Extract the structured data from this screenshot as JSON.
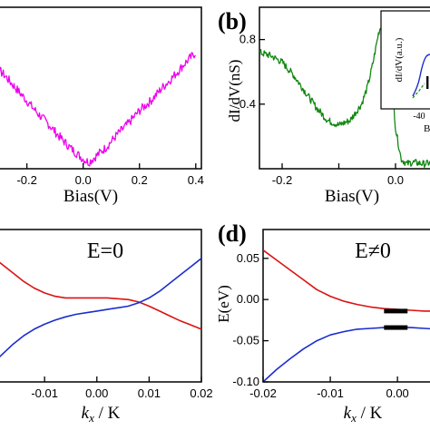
{
  "chart_data": [
    {
      "panel": "",
      "type": "line",
      "xlabel": "Bias(V)",
      "ylabel": "",
      "xlim": [
        -0.36,
        0.42
      ],
      "ylim": [
        0,
        1
      ],
      "x_ticks": [
        -0.2,
        0.0,
        0.2,
        0.4
      ],
      "x_tick_labels": [
        "-0.2",
        "0.0",
        "0.2",
        "0.4"
      ],
      "y_ticks": [],
      "y_tick_labels": [],
      "color": "#ee00ee",
      "noise": 0.028,
      "series": [
        {
          "name": "",
          "x": [
            -0.36,
            -0.32,
            -0.28,
            -0.24,
            -0.2,
            -0.16,
            -0.12,
            -0.08,
            -0.04,
            0.0,
            0.02,
            0.04,
            0.08,
            0.12,
            0.16,
            0.2,
            0.24,
            0.28,
            0.32,
            0.36,
            0.4
          ],
          "y": [
            0.7,
            0.64,
            0.58,
            0.5,
            0.42,
            0.34,
            0.27,
            0.19,
            0.12,
            0.06,
            0.04,
            0.07,
            0.13,
            0.21,
            0.28,
            0.36,
            0.42,
            0.5,
            0.57,
            0.65,
            0.72
          ]
        }
      ]
    },
    {
      "panel": "(b)",
      "type": "line",
      "xlabel": "Bias(V)",
      "ylabel": "dI/dV(nS)",
      "xlim": [
        -0.24,
        0.08
      ],
      "ylim": [
        0,
        1.0
      ],
      "x_ticks": [
        -0.2,
        -0.1,
        0.0
      ],
      "x_tick_labels": [
        "-0.2",
        "",
        "0.0"
      ],
      "y_ticks": [
        0.4,
        0.8
      ],
      "y_tick_labels": [
        "0.4",
        "0.8"
      ],
      "color": "#118811",
      "noise": 0.022,
      "series": [
        {
          "name": "",
          "x": [
            -0.24,
            -0.22,
            -0.2,
            -0.18,
            -0.16,
            -0.14,
            -0.12,
            -0.1,
            -0.08,
            -0.06,
            -0.05,
            -0.04,
            -0.03,
            -0.02,
            -0.015,
            -0.01,
            -0.005,
            0.0,
            0.01,
            0.02,
            0.03,
            0.05,
            0.07
          ],
          "y": [
            0.72,
            0.7,
            0.66,
            0.58,
            0.48,
            0.38,
            0.3,
            0.27,
            0.3,
            0.4,
            0.5,
            0.65,
            0.84,
            0.94,
            0.92,
            0.75,
            0.5,
            0.25,
            0.06,
            0.03,
            0.04,
            0.03,
            0.04
          ]
        }
      ],
      "inset": {
        "ylabel": "dI/dV(a.u.)",
        "x_tick_labels": [
          "-40"
        ],
        "xlabel_partial": "B",
        "curve_color": "#1a2ecc",
        "dash_color": "#118811",
        "marker_color": "#000000"
      }
    },
    {
      "panel": "",
      "type": "line",
      "title": "E=0",
      "xlabel": "k_x / K",
      "ylabel": "",
      "xlim": [
        -0.022,
        0.02
      ],
      "ylim": [
        -0.1,
        0.085
      ],
      "x_ticks": [
        -0.01,
        0.0,
        0.01,
        0.02
      ],
      "x_tick_labels": [
        "-0.01",
        "0.00",
        "0.01",
        "0.02"
      ],
      "y_ticks": [],
      "y_tick_labels": [],
      "series": [
        {
          "name": "",
          "color": "#dd1111",
          "x": [
            -0.022,
            -0.02,
            -0.018,
            -0.016,
            -0.014,
            -0.012,
            -0.01,
            -0.008,
            -0.006,
            -0.004,
            -0.002,
            0.0,
            0.002,
            0.004,
            0.006,
            0.008,
            0.01,
            0.012,
            0.014,
            0.016,
            0.018,
            0.02
          ],
          "y": [
            0.06,
            0.052,
            0.042,
            0.032,
            0.022,
            0.014,
            0.008,
            0.004,
            0.002,
            0.002,
            0.002,
            0.002,
            0.002,
            0.001,
            0.0,
            -0.003,
            -0.008,
            -0.014,
            -0.02,
            -0.026,
            -0.031,
            -0.036
          ]
        },
        {
          "name": "",
          "color": "#1a2ecc",
          "x": [
            -0.022,
            -0.02,
            -0.018,
            -0.016,
            -0.014,
            -0.012,
            -0.01,
            -0.008,
            -0.006,
            -0.004,
            -0.002,
            0.0,
            0.002,
            0.004,
            0.006,
            0.008,
            0.01,
            0.012,
            0.014,
            0.016,
            0.018,
            0.02
          ],
          "y": [
            -0.09,
            -0.078,
            -0.066,
            -0.054,
            -0.044,
            -0.036,
            -0.03,
            -0.025,
            -0.021,
            -0.018,
            -0.016,
            -0.014,
            -0.012,
            -0.01,
            -0.008,
            -0.004,
            0.002,
            0.01,
            0.02,
            0.03,
            0.04,
            0.05
          ]
        }
      ]
    },
    {
      "panel": "(d)",
      "type": "line",
      "title": "E≠0",
      "xlabel": "k_x / K",
      "ylabel": "E(eV)",
      "xlim": [
        -0.02,
        0.007
      ],
      "ylim": [
        -0.1,
        0.085
      ],
      "x_ticks": [
        -0.02,
        -0.01,
        0.0
      ],
      "x_tick_labels": [
        "-0.02",
        "-0.01",
        "0.00"
      ],
      "y_ticks": [
        -0.1,
        -0.05,
        0.0,
        0.05
      ],
      "y_tick_labels": [
        "-0.10",
        "-0.05",
        "0.00",
        "0.05"
      ],
      "series": [
        {
          "name": "",
          "color": "#dd1111",
          "x": [
            -0.02,
            -0.018,
            -0.016,
            -0.014,
            -0.012,
            -0.01,
            -0.008,
            -0.006,
            -0.004,
            -0.002,
            0.0,
            0.002,
            0.004,
            0.006,
            0.007
          ],
          "y": [
            0.06,
            0.048,
            0.036,
            0.024,
            0.012,
            0.004,
            -0.002,
            -0.006,
            -0.009,
            -0.011,
            -0.012,
            -0.013,
            -0.014,
            -0.014,
            -0.014
          ]
        },
        {
          "name": "",
          "color": "#1a2ecc",
          "x": [
            -0.02,
            -0.018,
            -0.016,
            -0.014,
            -0.012,
            -0.01,
            -0.008,
            -0.006,
            -0.004,
            -0.002,
            0.0,
            0.002,
            0.004,
            0.006,
            0.007
          ],
          "y": [
            -0.1,
            -0.085,
            -0.072,
            -0.06,
            -0.05,
            -0.043,
            -0.039,
            -0.036,
            -0.035,
            -0.034,
            -0.034,
            -0.034,
            -0.035,
            -0.036,
            -0.036
          ]
        }
      ],
      "markers": [
        {
          "x0": -0.002,
          "x1": 0.0015,
          "y": -0.014
        },
        {
          "x0": -0.002,
          "x1": 0.0015,
          "y": -0.034
        }
      ]
    }
  ]
}
